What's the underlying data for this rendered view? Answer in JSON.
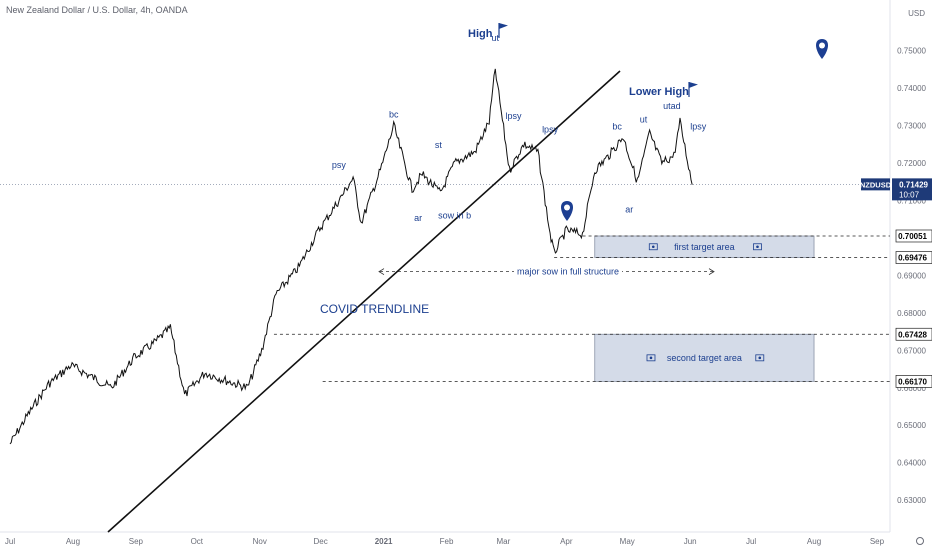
{
  "header": {
    "title": "New Zealand Dollar / U.S. Dollar, 4h, OANDA"
  },
  "chart_data": {
    "type": "line",
    "currency": "USD",
    "symbol": "NZDUSD",
    "x_ticks": [
      "Jul",
      "Aug",
      "Sep",
      "Oct",
      "Nov",
      "Dec",
      "2021",
      "Feb",
      "Mar",
      "Apr",
      "May",
      "Jun",
      "Jul",
      "Aug",
      "Sep"
    ],
    "y_ticks": [
      "0.75000",
      "0.74000",
      "0.73000",
      "0.72000",
      "0.71000",
      "0.70000",
      "0.69000",
      "0.68000",
      "0.67000",
      "0.66000",
      "0.65000",
      "0.64000",
      "0.63000"
    ],
    "ylim": [
      0.6215,
      0.7635
    ],
    "series": [
      {
        "x": [
          "2020-07-01",
          "2020-07-10",
          "2020-07-20",
          "2020-07-31",
          "2020-08-10",
          "2020-08-20",
          "2020-08-31",
          "2020-09-10",
          "2020-09-18",
          "2020-09-25",
          "2020-10-05",
          "2020-10-15",
          "2020-10-26",
          "2020-11-02",
          "2020-11-09",
          "2020-11-20",
          "2020-11-30",
          "2020-12-10",
          "2020-12-17",
          "2020-12-21",
          "2020-12-31",
          "2021-01-06",
          "2021-01-15",
          "2021-01-20",
          "2021-01-29",
          "2021-02-05",
          "2021-02-15",
          "2021-02-22",
          "2021-02-25",
          "2021-03-04",
          "2021-03-11",
          "2021-03-18",
          "2021-03-24",
          "2021-03-26",
          "2021-04-01",
          "2021-04-09",
          "2021-04-15",
          "2021-04-22",
          "2021-04-29",
          "2021-05-06",
          "2021-05-12",
          "2021-05-18",
          "2021-05-24",
          "2021-05-27",
          "2021-06-02"
        ],
        "y": [
          0.645,
          0.653,
          0.661,
          0.666,
          0.663,
          0.66,
          0.668,
          0.672,
          0.676,
          0.658,
          0.664,
          0.662,
          0.66,
          0.67,
          0.685,
          0.692,
          0.702,
          0.71,
          0.716,
          0.704,
          0.719,
          0.73,
          0.713,
          0.717,
          0.712,
          0.72,
          0.723,
          0.731,
          0.745,
          0.718,
          0.725,
          0.723,
          0.701,
          0.696,
          0.702,
          0.701,
          0.718,
          0.722,
          0.727,
          0.715,
          0.728,
          0.72,
          0.722,
          0.731,
          0.7142
        ]
      }
    ],
    "annotations": {
      "wyckoff": [
        {
          "text": "psy",
          "x": "2020-12-10",
          "y": 0.7186
        },
        {
          "text": "bc",
          "x": "2021-01-06",
          "y": 0.7322
        },
        {
          "text": "ar",
          "x": "2021-01-18",
          "y": 0.7045
        },
        {
          "text": "st",
          "x": "2021-01-28",
          "y": 0.724
        },
        {
          "text": "sow in b",
          "x": "2021-02-05",
          "y": 0.7052
        },
        {
          "text": "ut",
          "x": "2021-02-25",
          "y": 0.7525
        },
        {
          "text": "lpsy",
          "x": "2021-03-06",
          "y": 0.7318
        },
        {
          "text": "lpsy",
          "x": "2021-03-24",
          "y": 0.7282
        },
        {
          "text": "bc",
          "x": "2021-04-26",
          "y": 0.729
        },
        {
          "text": "ar",
          "x": "2021-05-02",
          "y": 0.7068
        },
        {
          "text": "ut",
          "x": "2021-05-09",
          "y": 0.7308
        },
        {
          "text": "utad",
          "x": "2021-05-23",
          "y": 0.7344
        },
        {
          "text": "lpsy",
          "x": "2021-06-05",
          "y": 0.729
        }
      ],
      "high_label": "High",
      "lower_high_label": "Lower High",
      "trendline_label": "COVID TRENDLINE",
      "first_target_label": "first target area",
      "second_target_label": "second target area",
      "sow_label": "major sow in full structure"
    },
    "price_levels": [
      {
        "value": 0.70051,
        "label": "0.70051"
      },
      {
        "value": 0.69476,
        "label": "0.69476"
      },
      {
        "value": 0.67428,
        "label": "0.67428"
      },
      {
        "value": 0.6617,
        "label": "0.66170"
      }
    ],
    "current_price": {
      "label": "0.71429",
      "value": 0.71429,
      "countdown": "10:07"
    },
    "grid": false
  }
}
